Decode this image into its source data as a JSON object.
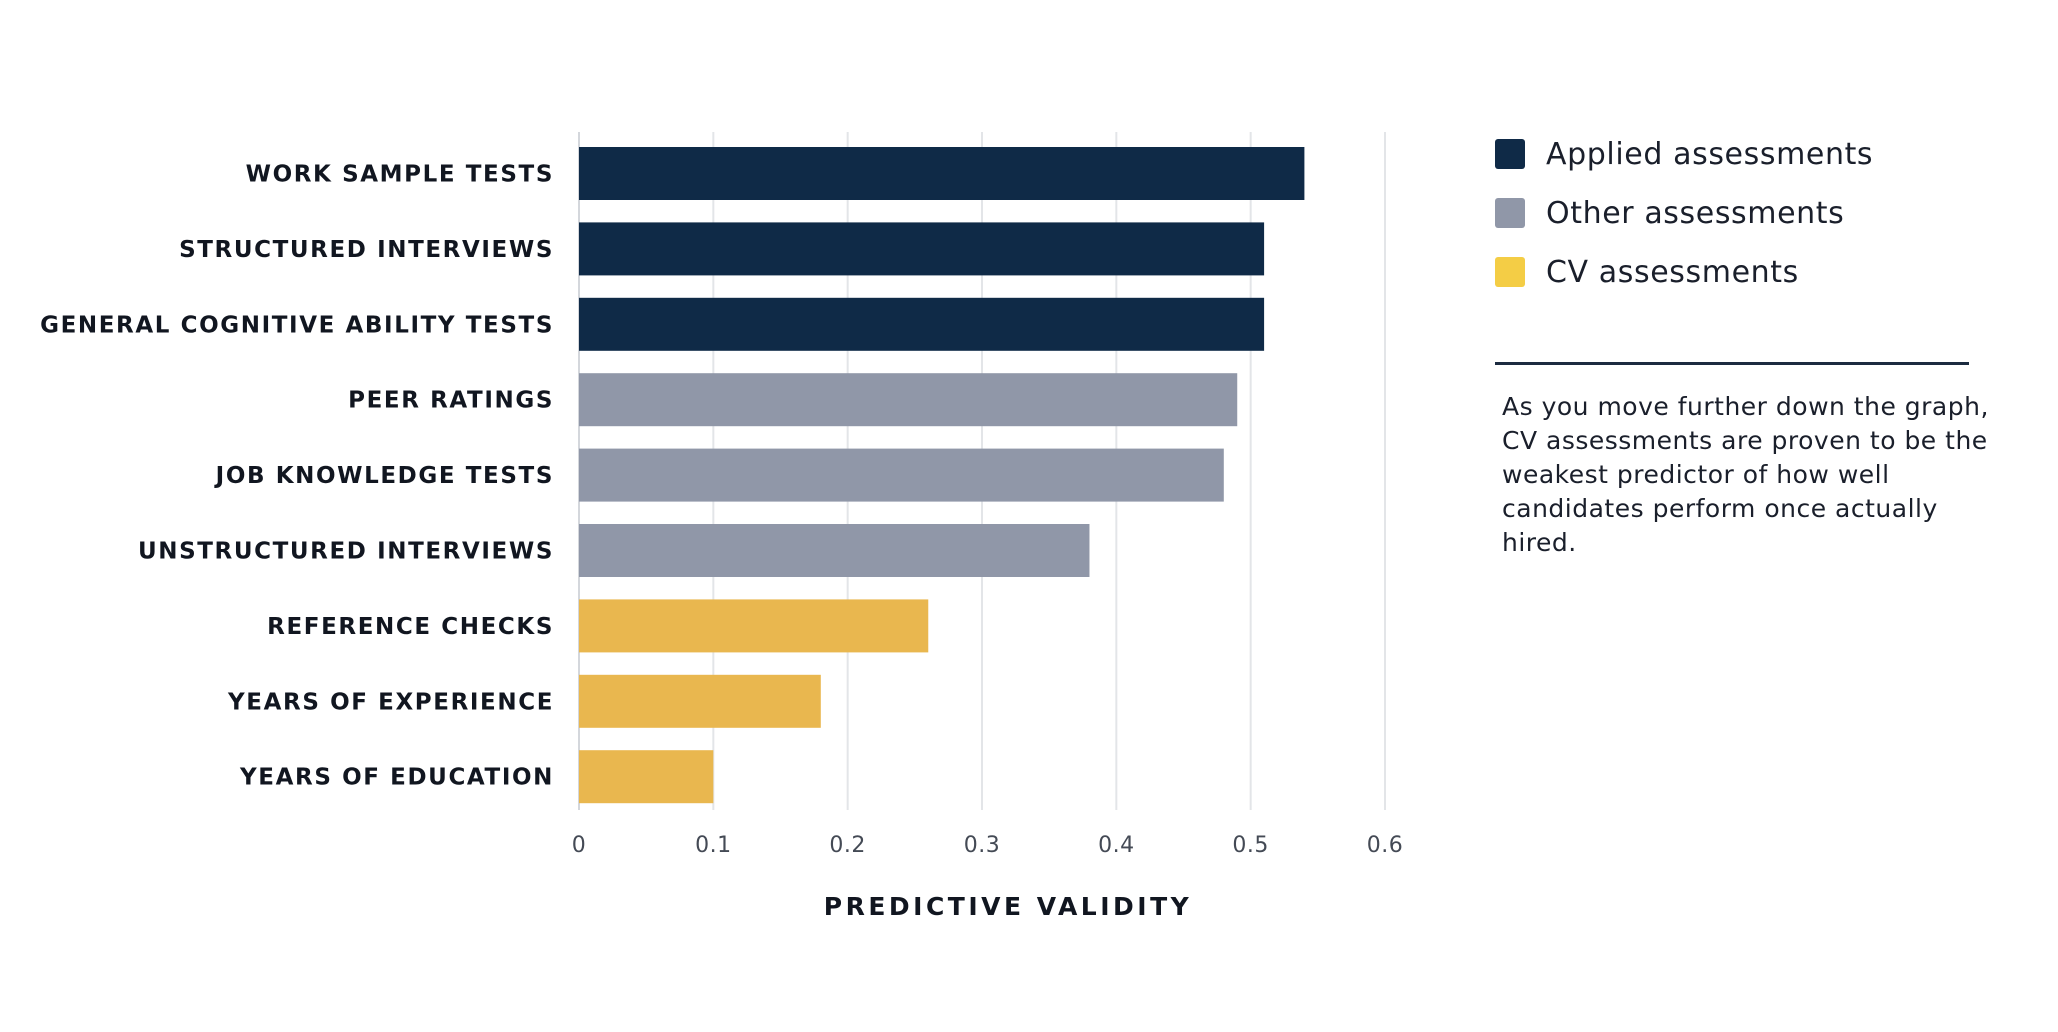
{
  "chart_data": {
    "type": "bar",
    "orientation": "horizontal",
    "categories": [
      "WORK SAMPLE TESTS",
      "STRUCTURED INTERVIEWS",
      "GENERAL COGNITIVE ABILITY TESTS",
      "PEER RATINGS",
      "JOB KNOWLEDGE TESTS",
      "UNSTRUCTURED INTERVIEWS",
      "REFERENCE CHECKS",
      "YEARS OF EXPERIENCE",
      "YEARS OF EDUCATION"
    ],
    "values": [
      0.54,
      0.51,
      0.51,
      0.49,
      0.48,
      0.38,
      0.26,
      0.18,
      0.1
    ],
    "bar_groups": [
      0,
      0,
      0,
      1,
      1,
      1,
      2,
      2,
      2
    ],
    "groups": [
      {
        "name": "Applied assessments",
        "color": "#0f2a47"
      },
      {
        "name": "Other assessments",
        "color": "#9097a8"
      },
      {
        "name": "CV assessments",
        "color": "#f4cd45"
      }
    ],
    "bar_colors": [
      "#0f2a47",
      "#0f2a47",
      "#0f2a47",
      "#9097a8",
      "#9097a8",
      "#9097a8",
      "#e9b74f",
      "#e9b74f",
      "#e9b74f"
    ],
    "xlabel": "PREDICTIVE VALIDITY",
    "ylabel": "",
    "xlim": [
      0,
      0.6
    ],
    "xticks": [
      0,
      0.1,
      0.2,
      0.3,
      0.4,
      0.5,
      0.6
    ],
    "xtick_labels": [
      "0",
      "0.1",
      "0.2",
      "0.3",
      "0.4",
      "0.5",
      "0.6"
    ],
    "grid": "vertical",
    "legend_position": "right"
  },
  "note": "As you move further down the graph, CV assessments are proven to be the weakest predictor of how well candidates perform once actually hired."
}
